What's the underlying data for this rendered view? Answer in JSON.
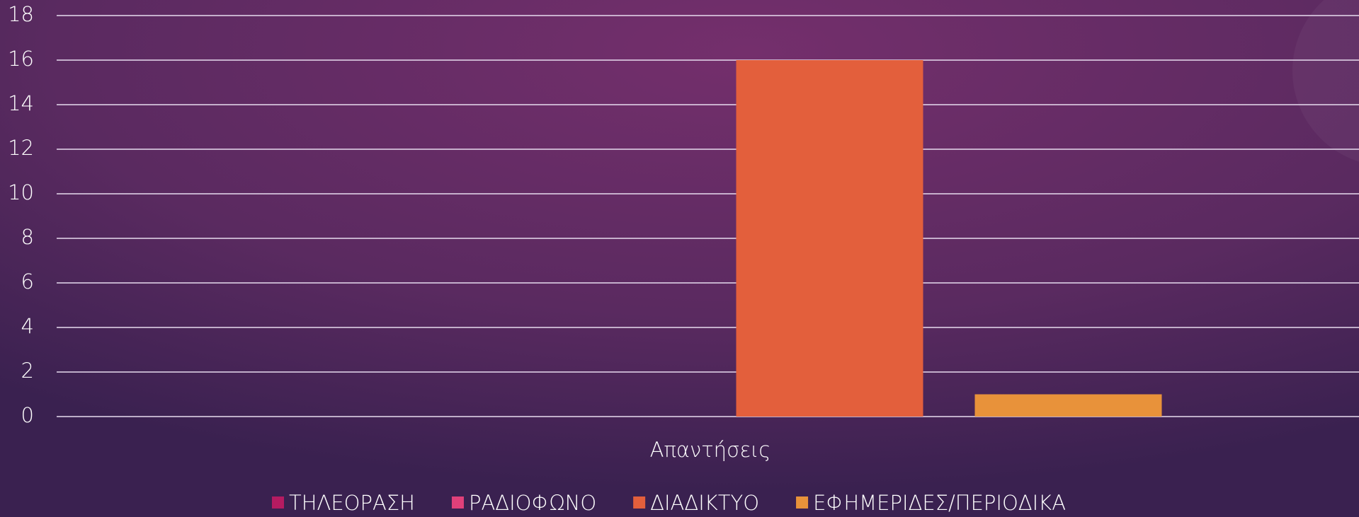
{
  "chart_data": {
    "type": "bar",
    "categories": [
      "Απαντήσεις"
    ],
    "series": [
      {
        "name": "ΤΗΛΕΟΡΑΣΗ",
        "color": "#b51b61",
        "values": [
          0
        ]
      },
      {
        "name": "ΡΑΔΙΟΦΩΝΟ",
        "color": "#e0407a",
        "values": [
          0
        ]
      },
      {
        "name": "ΔΙΑΔΙΚΤΥΟ",
        "color": "#e35f3c",
        "values": [
          16
        ]
      },
      {
        "name": "ΕΦΗΜΕΡΙΔΕΣ/ΠΕΡΙΟΔΙΚΑ",
        "color": "#e8923a",
        "values": [
          1
        ]
      }
    ],
    "ylim": [
      0,
      18
    ],
    "yticks": [
      0,
      2,
      4,
      6,
      8,
      10,
      12,
      14,
      16,
      18
    ],
    "grid": true,
    "legend": "bottom"
  }
}
